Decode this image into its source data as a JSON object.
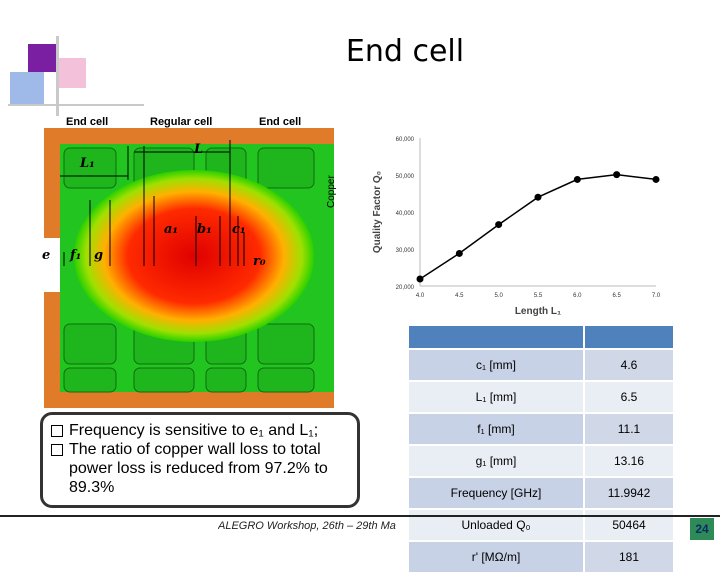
{
  "title": "End cell",
  "figure": {
    "header_labels": [
      "End cell",
      "Regular cell",
      "End cell"
    ],
    "copper_label": "Copper",
    "dims": {
      "L1": "L₁",
      "L": "L",
      "a1": "a₁",
      "b1": "b₁",
      "c1": "c₁",
      "e": "e",
      "f1": "f₁",
      "g": "g",
      "r0": "r₀"
    }
  },
  "chart_data": {
    "type": "line",
    "xlabel": "Length L₁",
    "ylabel": "Quality Factor Q₀",
    "x": [
      4.0,
      4.5,
      5.0,
      5.5,
      6.0,
      6.5,
      7.0
    ],
    "series": [
      {
        "values": [
          21900,
          28800,
          36600,
          44000,
          48800,
          50100,
          48800
        ]
      }
    ],
    "xticks": [
      "4.0",
      "4.5",
      "5.0",
      "5.5",
      "6.0",
      "6.5",
      "7.0"
    ],
    "yticks": [
      "20,000",
      "30,000",
      "40,000",
      "50,000",
      "60,000"
    ],
    "xlim": [
      4.0,
      7.0
    ],
    "ylim": [
      20000,
      60000
    ],
    "grid": false,
    "color": "#000000"
  },
  "bullets": [
    "Frequency is sensitive to e₁ and L₁;",
    "The ratio of copper wall loss to total power loss is reduced from 97.2% to 89.3%"
  ],
  "table": {
    "rows": [
      {
        "label": "c₁ [mm]",
        "value": "4.6"
      },
      {
        "label": "L₁ [mm]",
        "value": "6.5"
      },
      {
        "label": "f₁ [mm]",
        "value": "11.1"
      },
      {
        "label": "g₁ [mm]",
        "value": "13.16"
      },
      {
        "label": "Frequency [GHz]",
        "value": "11.9942"
      },
      {
        "label": "Unloaded Q₀",
        "value": "50464"
      },
      {
        "label": "r' [MΩ/m]",
        "value": "181"
      }
    ]
  },
  "footer": {
    "text": "ALEGRO Workshop, 26th – 29th Ma",
    "page": "24"
  }
}
